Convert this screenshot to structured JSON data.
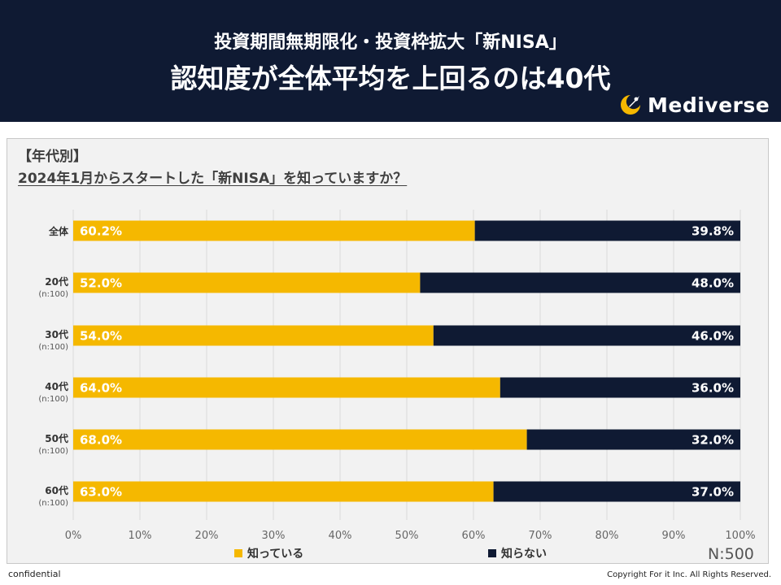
{
  "header": {
    "title_line1": "投資期間無期限化・投資枠拡大「新NISA」",
    "title_line2": "認知度が全体平均を上回るのは40代",
    "logo_text": "Mediverse"
  },
  "question": {
    "tag": "【年代別】",
    "text": "2024年1月からスタートした「新NISA」を知っていますか？"
  },
  "chart_data": {
    "type": "bar",
    "orientation": "horizontal",
    "stacked": true,
    "categories": [
      "全体",
      "20代",
      "30代",
      "40代",
      "50代",
      "60代"
    ],
    "category_sublabels": [
      "",
      "(n:100)",
      "(n:100)",
      "(n:100)",
      "(n:100)",
      "(n:100)"
    ],
    "series": [
      {
        "name": "知っている",
        "values": [
          60.2,
          52.0,
          54.0,
          64.0,
          68.0,
          63.0
        ],
        "labels": [
          "60.2%",
          "52.0%",
          "54.0%",
          "64.0%",
          "68.0%",
          "63.0%"
        ],
        "color": "#f5b800"
      },
      {
        "name": "知らない",
        "values": [
          39.8,
          48.0,
          46.0,
          36.0,
          32.0,
          37.0
        ],
        "labels": [
          "39.8%",
          "48.0%",
          "46.0%",
          "36.0%",
          "32.0%",
          "37.0%"
        ],
        "color": "#0f1a33"
      }
    ],
    "x_ticks": [
      "0%",
      "10%",
      "20%",
      "30%",
      "40%",
      "50%",
      "60%",
      "70%",
      "80%",
      "90%",
      "100%"
    ],
    "xlim": [
      0,
      100
    ],
    "grid": true,
    "legend": "bottom"
  },
  "sample_size": "N:500",
  "footer": {
    "confidential": "confidential",
    "copyright": "Copyright For it Inc. All Rights Reserved."
  },
  "colors": {
    "header_bg": "#0f1a33",
    "known": "#f5b800",
    "unknown": "#0f1a33",
    "logo_accent": "#f5b800"
  }
}
